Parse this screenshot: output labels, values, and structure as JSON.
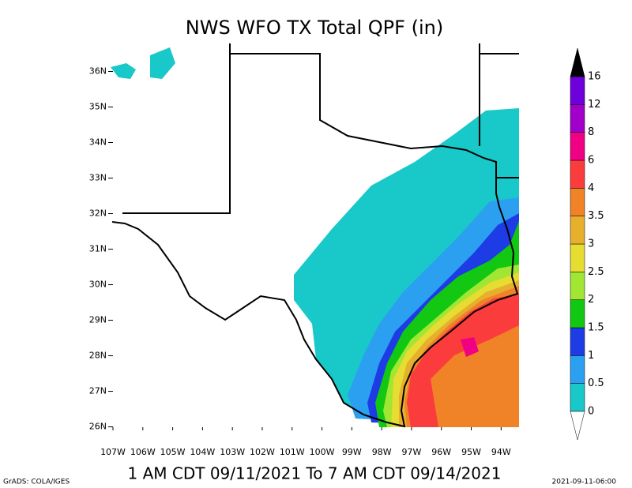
{
  "chart_data": {
    "type": "map",
    "title": "NWS WFO TX Total QPF (in)",
    "subtitle": "1 AM CDT 09/11/2021 To 7 AM CDT 09/14/2021",
    "credit": "GrADS: COLA/IGES",
    "timestamp": "2021-09-11-06:00",
    "xlim": [
      -107,
      -93.4
    ],
    "ylim": [
      25.99,
      36.5
    ],
    "xticks": [
      {
        "value": -107,
        "label": "107W"
      },
      {
        "value": -106,
        "label": "106W"
      },
      {
        "value": -105,
        "label": "105W"
      },
      {
        "value": -104,
        "label": "104W"
      },
      {
        "value": -103,
        "label": "103W"
      },
      {
        "value": -102,
        "label": "102W"
      },
      {
        "value": -101,
        "label": "101W"
      },
      {
        "value": -100,
        "label": "100W"
      },
      {
        "value": -99,
        "label": "99W"
      },
      {
        "value": -98,
        "label": "98W"
      },
      {
        "value": -97,
        "label": "97W"
      },
      {
        "value": -96,
        "label": "96W"
      },
      {
        "value": -95,
        "label": "95W"
      },
      {
        "value": -94,
        "label": "94W"
      }
    ],
    "yticks": [
      {
        "value": 26,
        "label": "26N"
      },
      {
        "value": 27,
        "label": "27N"
      },
      {
        "value": 28,
        "label": "28N"
      },
      {
        "value": 29,
        "label": "29N"
      },
      {
        "value": 30,
        "label": "30N"
      },
      {
        "value": 31,
        "label": "31N"
      },
      {
        "value": 32,
        "label": "32N"
      },
      {
        "value": 33,
        "label": "33N"
      },
      {
        "value": 34,
        "label": "34N"
      },
      {
        "value": 35,
        "label": "35N"
      },
      {
        "value": 36,
        "label": "36N"
      }
    ],
    "colorbar": {
      "levels": [
        0,
        0.5,
        1,
        1.5,
        2,
        2.5,
        3,
        3.5,
        4,
        6,
        8,
        12,
        16
      ],
      "colors": [
        "#19c8c8",
        "#2ca0f0",
        "#1e3ce6",
        "#12c812",
        "#a0e632",
        "#e6dc32",
        "#e6af2d",
        "#f08228",
        "#fa3c3c",
        "#f00082",
        "#a000c8",
        "#6e00dc"
      ],
      "under_color": "#ffffff",
      "over_color": "#000000"
    }
  }
}
